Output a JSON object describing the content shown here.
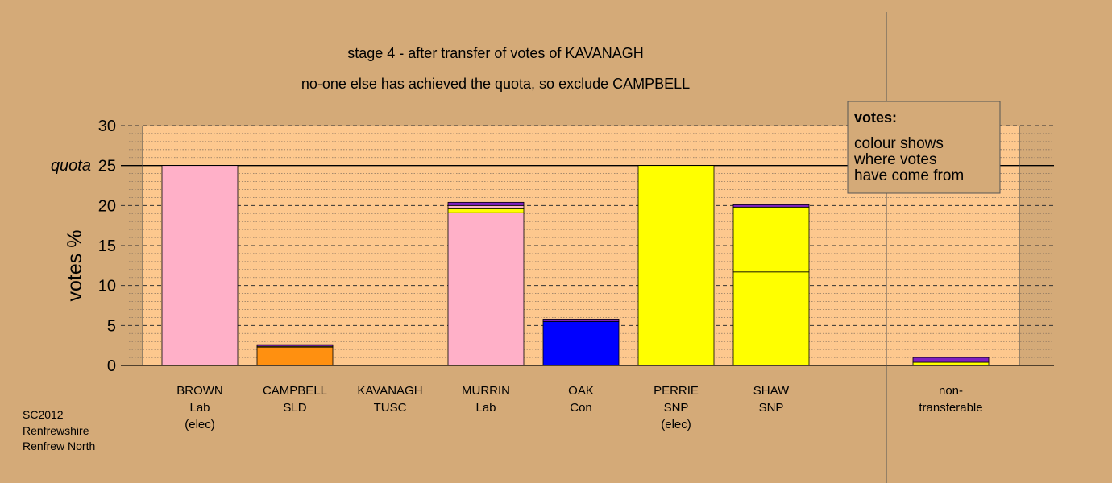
{
  "chart_data": {
    "type": "bar",
    "stacked": true,
    "title": "stage 4 - after transfer of votes of KAVANAGH",
    "subtitle": "no-one else has achieved the quota, so exclude CAMPBELL",
    "ylabel": "votes %",
    "ylim": [
      0,
      30
    ],
    "yticks": [
      0,
      5,
      10,
      15,
      20,
      25,
      30
    ],
    "quota_label": "quota",
    "quota": 25,
    "grid": true,
    "legend_position": "top-right",
    "legend": {
      "heading": "votes:",
      "lines": [
        "colour shows",
        "where votes",
        "have come from"
      ]
    },
    "footer": [
      "SC2012",
      "Renfrewshire",
      "Renfrew North"
    ],
    "colors": {
      "background": "#d4aa78",
      "plot": "#fdc88e",
      "Lab": "#ffb0c8",
      "SLD": "#ff9010",
      "Con": "#0000ff",
      "SNP": "#ffff00",
      "TUSC": "#8020c0"
    },
    "candidates": [
      {
        "lines": [
          "BROWN",
          "Lab",
          "(elec)"
        ],
        "segments": [
          {
            "party": "Lab",
            "value": 25.0
          }
        ]
      },
      {
        "lines": [
          "CAMPBELL",
          "SLD"
        ],
        "segments": [
          {
            "party": "SLD",
            "value": 2.3
          },
          {
            "party": "SNP",
            "value": 0.1
          },
          {
            "party": "TUSC",
            "value": 0.2
          }
        ]
      },
      {
        "lines": [
          "KAVANAGH",
          "TUSC"
        ],
        "segments": []
      },
      {
        "lines": [
          "MURRIN",
          "Lab"
        ],
        "segments": [
          {
            "party": "Lab",
            "value": 19.1
          },
          {
            "party": "SNP",
            "value": 0.5
          },
          {
            "party": "Lab",
            "value": 0.4
          },
          {
            "party": "TUSC",
            "value": 0.4
          }
        ]
      },
      {
        "lines": [
          "OAK",
          "Con"
        ],
        "segments": [
          {
            "party": "Con",
            "value": 5.5
          },
          {
            "party": "TUSC",
            "value": 0.3
          }
        ]
      },
      {
        "lines": [
          "PERRIE",
          "SNP",
          "(elec)"
        ],
        "segments": [
          {
            "party": "SNP",
            "value": 25.0
          }
        ]
      },
      {
        "lines": [
          "SHAW",
          "SNP"
        ],
        "segments": [
          {
            "party": "SNP",
            "value": 11.7
          },
          {
            "party": "SNP",
            "value": 8.1
          },
          {
            "party": "TUSC",
            "value": 0.3
          }
        ]
      },
      {
        "lines": [
          "non-",
          "transferable"
        ],
        "segments": [
          {
            "party": "SNP",
            "value": 0.4
          },
          {
            "party": "TUSC",
            "value": 0.6
          }
        ]
      }
    ]
  }
}
